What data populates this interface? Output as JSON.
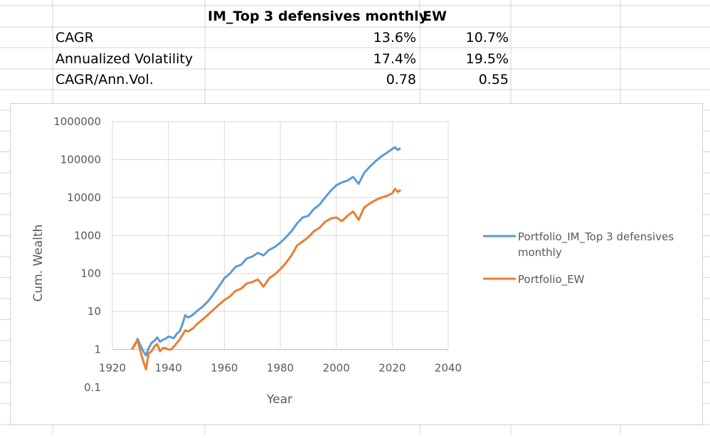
{
  "table": {
    "header": {
      "portfolio": "IM_Top 3 defensives monthly",
      "ew": "EW"
    },
    "rows": [
      {
        "label": "CAGR",
        "portfolio": "13.6%",
        "ew": "10.7%"
      },
      {
        "label": "Annualized Volatility",
        "portfolio": "17.4%",
        "ew": "19.5%"
      },
      {
        "label": "CAGR/Ann.Vol.",
        "portfolio": "0.78",
        "ew": "0.55"
      }
    ]
  },
  "colors": {
    "series_blue": "#5b9bd5",
    "series_orange": "#ed7d31",
    "grid": "#d9d9d9",
    "axis": "#bfbfbf"
  },
  "chart_data": {
    "type": "line",
    "xlabel": "Year",
    "ylabel": "Cum. Wealth",
    "xlim": [
      1920,
      2040
    ],
    "ylim": [
      0.1,
      1000000
    ],
    "y_scale": "log",
    "x_ticks": [
      "1920",
      "1940",
      "1960",
      "1980",
      "2000",
      "2020",
      "2040"
    ],
    "y_ticks": [
      "0.1",
      "1",
      "10",
      "100",
      "1000",
      "10000",
      "100000",
      "1000000"
    ],
    "legend_position": "right",
    "grid": true,
    "series": [
      {
        "name": "Portfolio_IM_Top 3 defensives monthly",
        "color": "#5b9bd5",
        "x": [
          1927,
          1928,
          1929,
          1930,
          1931,
          1932,
          1933,
          1934,
          1935,
          1936,
          1937,
          1938,
          1939,
          1940,
          1941,
          1942,
          1943,
          1944,
          1945,
          1946,
          1947,
          1948,
          1949,
          1950,
          1952,
          1954,
          1956,
          1958,
          1960,
          1962,
          1964,
          1966,
          1968,
          1970,
          1972,
          1974,
          1976,
          1978,
          1980,
          1982,
          1984,
          1986,
          1988,
          1990,
          1992,
          1994,
          1996,
          1998,
          2000,
          2002,
          2004,
          2006,
          2008,
          2010,
          2012,
          2014,
          2016,
          2018,
          2020,
          2021,
          2022,
          2023
        ],
        "y": [
          1.0,
          1.3,
          1.9,
          1.3,
          0.9,
          0.7,
          1.1,
          1.5,
          1.7,
          2.1,
          1.6,
          1.8,
          1.9,
          2.2,
          2.1,
          2.0,
          2.6,
          3.0,
          4.5,
          8.0,
          7.0,
          7.5,
          8.5,
          10,
          13,
          18,
          28,
          45,
          75,
          100,
          150,
          170,
          250,
          280,
          350,
          300,
          420,
          500,
          650,
          900,
          1300,
          2100,
          3000,
          3300,
          5000,
          6500,
          10000,
          15000,
          21000,
          25000,
          28000,
          35000,
          23000,
          45000,
          65000,
          90000,
          120000,
          150000,
          190000,
          210000,
          180000,
          200000
        ]
      },
      {
        "name": "Portfolio_EW",
        "color": "#ed7d31",
        "x": [
          1927,
          1928,
          1929,
          1930,
          1931,
          1932,
          1933,
          1934,
          1935,
          1936,
          1937,
          1938,
          1939,
          1940,
          1941,
          1942,
          1943,
          1944,
          1945,
          1946,
          1947,
          1948,
          1949,
          1950,
          1952,
          1954,
          1956,
          1958,
          1960,
          1962,
          1964,
          1966,
          1968,
          1970,
          1972,
          1974,
          1976,
          1978,
          1980,
          1982,
          1984,
          1986,
          1988,
          1990,
          1992,
          1994,
          1996,
          1998,
          2000,
          2002,
          2004,
          2006,
          2008,
          2010,
          2012,
          2014,
          2016,
          2018,
          2020,
          2021,
          2022,
          2023
        ],
        "y": [
          1.0,
          1.4,
          1.7,
          0.9,
          0.5,
          0.3,
          0.8,
          0.9,
          1.2,
          1.4,
          0.9,
          1.1,
          1.1,
          1.0,
          1.0,
          1.2,
          1.5,
          1.8,
          2.4,
          3.2,
          3.0,
          3.3,
          3.7,
          4.5,
          6,
          8,
          11,
          15,
          20,
          25,
          35,
          40,
          55,
          60,
          70,
          45,
          75,
          95,
          130,
          190,
          300,
          550,
          700,
          900,
          1300,
          1600,
          2300,
          2800,
          3000,
          2400,
          3300,
          4300,
          2600,
          5500,
          7000,
          8500,
          10000,
          11000,
          13000,
          17000,
          14000,
          16000
        ]
      }
    ]
  }
}
